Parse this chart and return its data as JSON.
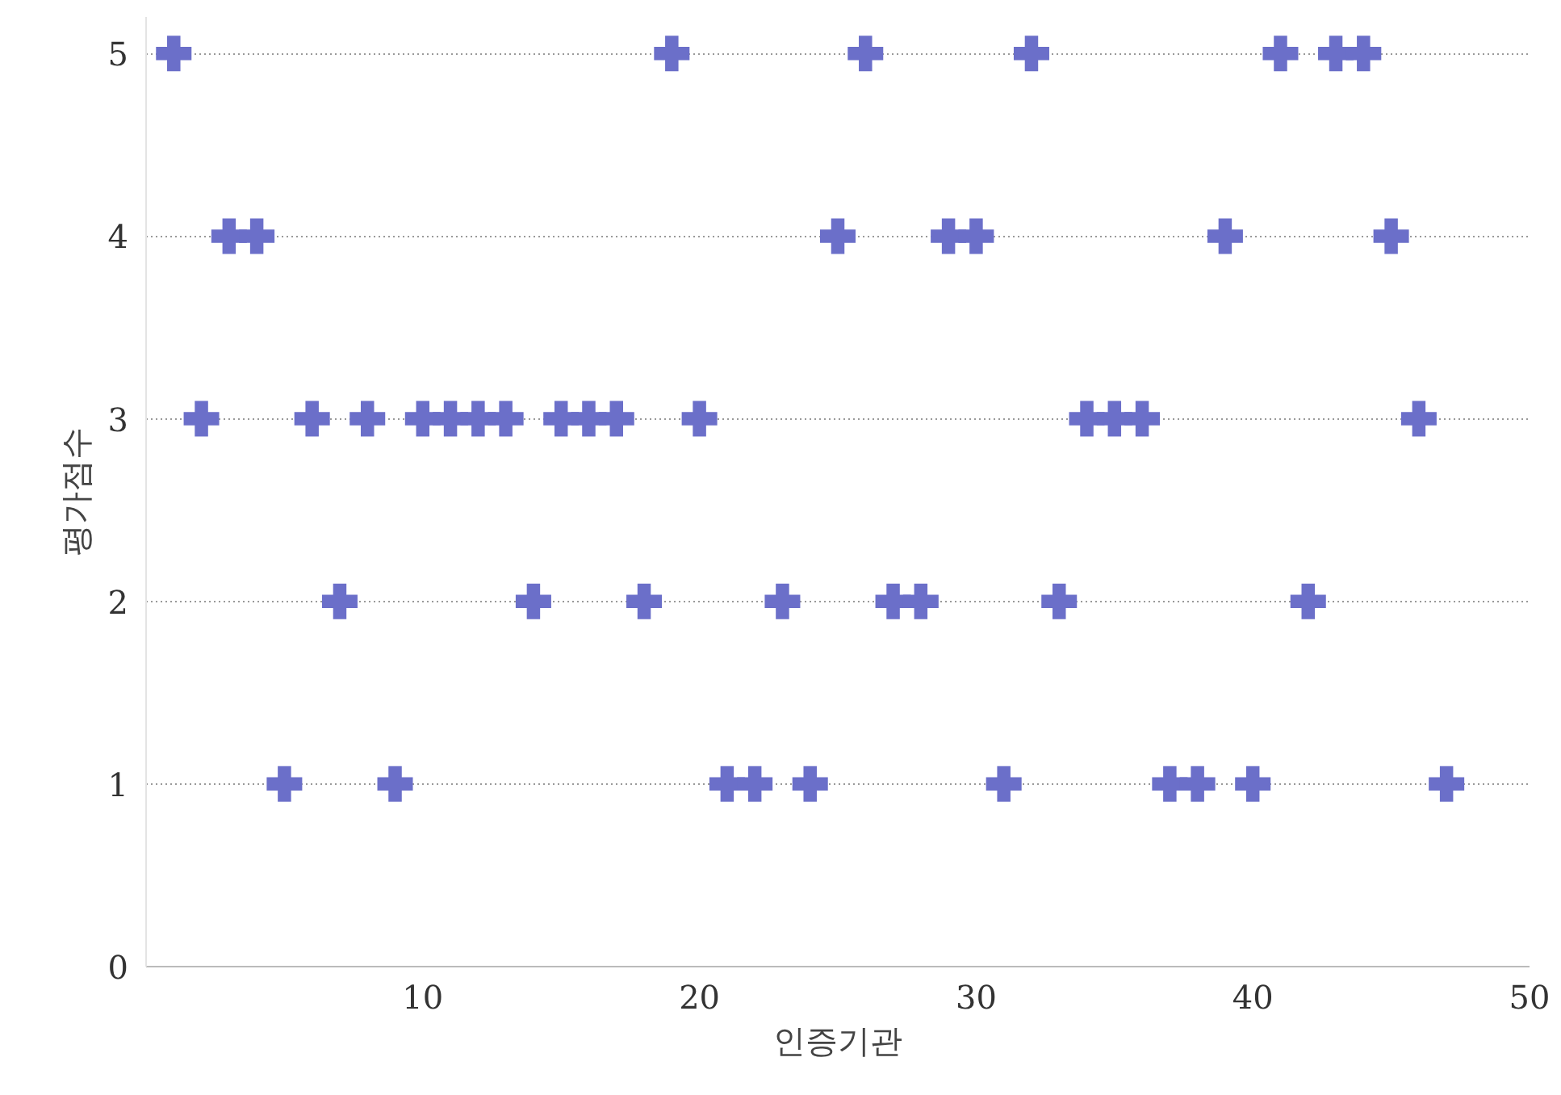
{
  "chart_data": {
    "type": "scatter",
    "xlabel": "인증기관",
    "ylabel": "평가점수",
    "x": [
      1,
      19,
      26,
      32,
      41,
      43,
      44,
      3,
      4,
      25,
      29,
      30,
      39,
      45,
      2,
      6,
      8,
      10,
      11,
      12,
      13,
      15,
      16,
      17,
      20,
      34,
      35,
      36,
      46,
      7,
      14,
      18,
      23,
      27,
      28,
      33,
      42,
      5,
      9,
      21,
      22,
      24,
      31,
      37,
      38,
      40,
      47
    ],
    "values": [
      5,
      5,
      5,
      5,
      5,
      5,
      5,
      4,
      4,
      4,
      4,
      4,
      4,
      4,
      3,
      3,
      3,
      3,
      3,
      3,
      3,
      3,
      3,
      3,
      3,
      3,
      3,
      3,
      3,
      2,
      2,
      2,
      2,
      2,
      2,
      2,
      2,
      1,
      1,
      1,
      1,
      1,
      1,
      1,
      1,
      1,
      1
    ],
    "color": "#6b6fc9",
    "marker": "cross",
    "xlim": [
      0,
      50
    ],
    "xticks": [
      10,
      20,
      30,
      40,
      50
    ],
    "ylim": [
      0,
      5.2
    ],
    "yticks": [
      0,
      1,
      2,
      3,
      4,
      5
    ],
    "grid": "y"
  }
}
